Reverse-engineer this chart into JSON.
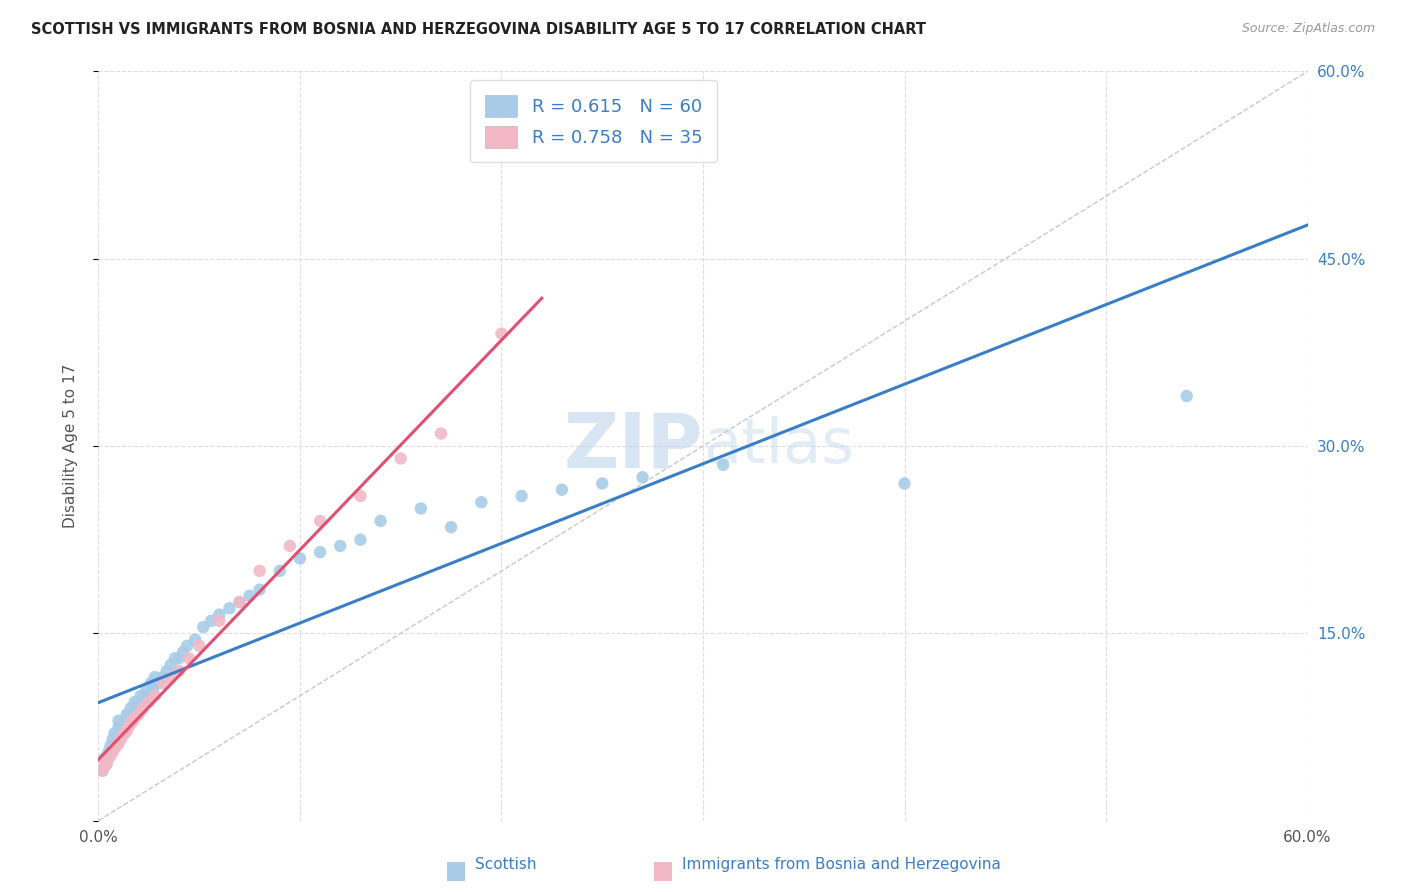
{
  "title": "SCOTTISH VS IMMIGRANTS FROM BOSNIA AND HERZEGOVINA DISABILITY AGE 5 TO 17 CORRELATION CHART",
  "source": "Source: ZipAtlas.com",
  "ylabel": "Disability Age 5 to 17",
  "xlim": [
    0.0,
    0.6
  ],
  "ylim": [
    0.0,
    0.6
  ],
  "scottish_color": "#A8CCE8",
  "bosnia_color": "#F2B8C6",
  "scottish_line_color": "#3A7EC8",
  "bosnia_line_color": "#E05070",
  "diagonal_color": "#C8C8C8",
  "R_scottish": 0.615,
  "N_scottish": 60,
  "R_bosnia": 0.758,
  "N_bosnia": 35,
  "watermark": "ZIPatlas",
  "scottish_x": [
    0.002,
    0.003,
    0.004,
    0.005,
    0.006,
    0.007,
    0.008,
    0.009,
    0.01,
    0.01,
    0.011,
    0.012,
    0.013,
    0.014,
    0.015,
    0.016,
    0.017,
    0.018,
    0.019,
    0.02,
    0.021,
    0.022,
    0.023,
    0.024,
    0.025,
    0.026,
    0.027,
    0.028,
    0.03,
    0.032,
    0.034,
    0.036,
    0.038,
    0.04,
    0.042,
    0.044,
    0.048,
    0.052,
    0.056,
    0.06,
    0.065,
    0.07,
    0.075,
    0.08,
    0.09,
    0.1,
    0.11,
    0.12,
    0.13,
    0.14,
    0.16,
    0.175,
    0.19,
    0.21,
    0.23,
    0.25,
    0.27,
    0.31,
    0.4,
    0.54
  ],
  "scottish_y": [
    0.04,
    0.05,
    0.045,
    0.055,
    0.06,
    0.065,
    0.07,
    0.06,
    0.075,
    0.08,
    0.07,
    0.075,
    0.08,
    0.085,
    0.085,
    0.09,
    0.08,
    0.095,
    0.09,
    0.095,
    0.1,
    0.095,
    0.1,
    0.105,
    0.1,
    0.11,
    0.105,
    0.115,
    0.11,
    0.115,
    0.12,
    0.125,
    0.13,
    0.13,
    0.135,
    0.14,
    0.145,
    0.155,
    0.16,
    0.165,
    0.17,
    0.175,
    0.18,
    0.185,
    0.2,
    0.21,
    0.215,
    0.22,
    0.225,
    0.24,
    0.25,
    0.235,
    0.255,
    0.26,
    0.265,
    0.27,
    0.275,
    0.285,
    0.27,
    0.34
  ],
  "bosnia_x": [
    0.002,
    0.003,
    0.004,
    0.005,
    0.006,
    0.007,
    0.008,
    0.009,
    0.01,
    0.011,
    0.012,
    0.013,
    0.014,
    0.015,
    0.016,
    0.017,
    0.018,
    0.02,
    0.022,
    0.025,
    0.028,
    0.032,
    0.036,
    0.04,
    0.045,
    0.05,
    0.06,
    0.07,
    0.08,
    0.095,
    0.11,
    0.13,
    0.15,
    0.17,
    0.2
  ],
  "bosnia_y": [
    0.04,
    0.045,
    0.045,
    0.05,
    0.052,
    0.055,
    0.058,
    0.06,
    0.062,
    0.065,
    0.068,
    0.07,
    0.072,
    0.075,
    0.078,
    0.08,
    0.082,
    0.085,
    0.09,
    0.095,
    0.1,
    0.11,
    0.115,
    0.12,
    0.13,
    0.14,
    0.16,
    0.175,
    0.2,
    0.22,
    0.24,
    0.26,
    0.29,
    0.31,
    0.39
  ]
}
